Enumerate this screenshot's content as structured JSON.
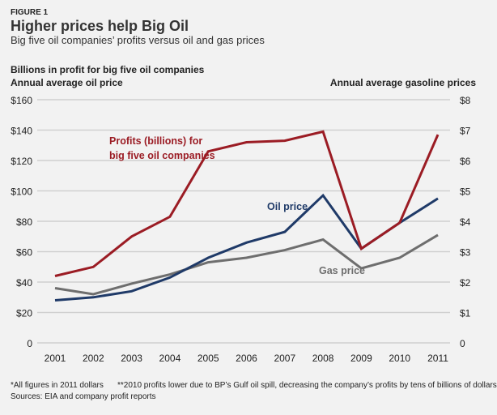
{
  "header": {
    "figure_label": "FIGURE 1",
    "title": "Higher prices help Big Oil",
    "subtitle": "Big five oil companies’ profits versus oil and gas prices"
  },
  "chart_data": {
    "type": "line",
    "ylabel_left": [
      "Billions in profit for big five oil companies",
      "Annual average oil price"
    ],
    "ylabel_right": "Annual average gasoline prices",
    "x": [
      2001,
      2002,
      2003,
      2004,
      2005,
      2006,
      2007,
      2008,
      2009,
      2010,
      2011
    ],
    "yticks_left": [
      "0",
      "$20",
      "$40",
      "$60",
      "$80",
      "$100",
      "$120",
      "$140",
      "$160"
    ],
    "yticks_right": [
      "0",
      "$1",
      "$2",
      "$3",
      "$4",
      "$5",
      "$6",
      "$7",
      "$8"
    ],
    "ylim_left": [
      0,
      160
    ],
    "ylim_right": [
      0,
      8
    ],
    "grid": true,
    "series": [
      {
        "name": "Profits (billions) for big five oil companies",
        "label_lines": [
          "Profits (billions) for",
          "big five oil companies"
        ],
        "axis": "left",
        "color": "#9b1c24",
        "values": [
          44,
          50,
          70,
          83,
          126,
          132,
          133,
          139,
          62,
          79,
          137
        ]
      },
      {
        "name": "Oil price",
        "label_lines": [
          "Oil price"
        ],
        "axis": "left",
        "color": "#1f3a68",
        "values": [
          28,
          30,
          34,
          43,
          56,
          66,
          73,
          97,
          62,
          79,
          95
        ]
      },
      {
        "name": "Gas price",
        "label_lines": [
          "Gas price"
        ],
        "axis": "right",
        "color": "#6e6e6e",
        "values": [
          1.8,
          1.6,
          1.95,
          2.25,
          2.65,
          2.8,
          3.05,
          3.4,
          2.45,
          2.8,
          3.55
        ]
      }
    ]
  },
  "notes": {
    "note1": "*All figures in 2011 dollars",
    "note2": "**2010 profits lower due to BP’s Gulf oil spill, decreasing the company’s profits by tens of billions of dollars",
    "sources": "Sources: EIA and company profit reports"
  }
}
